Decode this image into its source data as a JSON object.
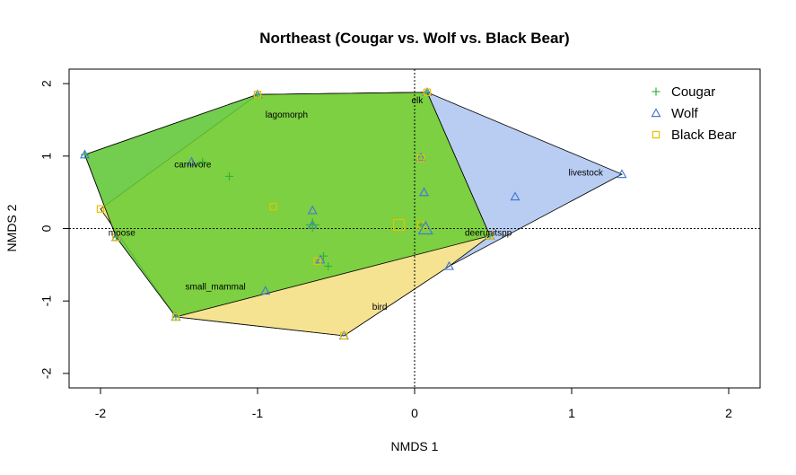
{
  "chart_data": {
    "type": "scatter",
    "title": "Northeast (Cougar vs. Wolf vs. Black Bear)",
    "xlabel": "NMDS 1",
    "ylabel": "NMDS 2",
    "xlim": [
      -2.2,
      2.2
    ],
    "ylim": [
      -2.2,
      2.2
    ],
    "xticks": [
      "-2",
      "-1",
      "0",
      "1",
      "2"
    ],
    "yticks": [
      "-2",
      "-1",
      "0",
      "1",
      "2"
    ],
    "xtick_values": [
      -2,
      -1,
      0,
      1,
      2
    ],
    "ytick_values": [
      -2,
      -1,
      0,
      1,
      2
    ],
    "legend_position": "top-right",
    "series": [
      {
        "name": "Cougar",
        "marker": "plus",
        "color": "#33b533",
        "hull_fill": "#66cc33",
        "hull": [
          [
            -2.1,
            1.02
          ],
          [
            -1.0,
            1.85
          ],
          [
            0.08,
            1.88
          ],
          [
            0.48,
            -0.1
          ],
          [
            -1.52,
            -1.22
          ],
          [
            -1.9,
            -0.12
          ]
        ],
        "points": [
          [
            -1.18,
            0.72
          ],
          [
            -1.35,
            0.92
          ],
          [
            -0.58,
            -0.38
          ],
          [
            -0.55,
            -0.52
          ],
          [
            0.04,
            0.05
          ],
          [
            -0.65,
            0.05
          ],
          [
            0.08,
            1.88
          ],
          [
            -1.0,
            1.85
          ],
          [
            -2.1,
            1.02
          ],
          [
            -1.9,
            -0.12
          ],
          [
            -1.52,
            -1.22
          ],
          [
            0.48,
            -0.1
          ]
        ]
      },
      {
        "name": "Wolf",
        "marker": "triangle",
        "color": "#4a78d4",
        "hull_fill": "#adc4f0",
        "hull": [
          [
            -2.1,
            1.02
          ],
          [
            -1.0,
            1.85
          ],
          [
            0.08,
            1.88
          ],
          [
            1.32,
            0.75
          ],
          [
            0.22,
            -0.52
          ],
          [
            -0.45,
            -1.48
          ],
          [
            -1.52,
            -1.22
          ],
          [
            -1.9,
            -0.12
          ]
        ],
        "points": [
          [
            -1.42,
            0.92
          ],
          [
            -0.65,
            0.25
          ],
          [
            -0.65,
            0.05
          ],
          [
            0.06,
            0.5
          ],
          [
            0.04,
            0.98
          ],
          [
            0.64,
            0.44
          ],
          [
            -0.95,
            -0.86
          ],
          [
            -0.6,
            -0.43
          ],
          [
            0.22,
            -0.52
          ],
          [
            1.32,
            0.75
          ],
          [
            -0.45,
            -1.48
          ],
          [
            0.48,
            -0.1
          ],
          [
            0.08,
            1.88
          ],
          [
            -1.0,
            1.85
          ],
          [
            -2.1,
            1.02
          ],
          [
            -1.9,
            -0.12
          ],
          [
            -1.52,
            -1.22
          ]
        ]
      },
      {
        "name": "Black Bear",
        "marker": "square",
        "color": "#e8c000",
        "hull_fill": "#ffe680",
        "hull": [
          [
            -1.0,
            1.85
          ],
          [
            0.08,
            1.88
          ],
          [
            0.48,
            -0.1
          ],
          [
            0.22,
            -0.52
          ],
          [
            -0.45,
            -1.48
          ],
          [
            -1.52,
            -1.22
          ],
          [
            -2.0,
            0.27
          ]
        ],
        "points": [
          [
            -2.0,
            0.27
          ],
          [
            -0.9,
            0.3
          ],
          [
            -0.62,
            -0.45
          ],
          [
            0.04,
            0.97
          ],
          [
            0.04,
            0.05
          ],
          [
            -0.45,
            -1.48
          ],
          [
            -1.52,
            -1.22
          ],
          [
            0.48,
            -0.1
          ],
          [
            0.08,
            1.88
          ],
          [
            -1.0,
            1.85
          ],
          [
            -1.9,
            -0.12
          ]
        ]
      }
    ],
    "species": [
      {
        "label": "lagomorph",
        "x": -0.95,
        "y": 1.53
      },
      {
        "label": "elk",
        "x": -0.02,
        "y": 1.73
      },
      {
        "label": "carnivore",
        "x": -1.53,
        "y": 0.84
      },
      {
        "label": "livestock",
        "x": 0.98,
        "y": 0.73
      },
      {
        "label": "moose",
        "x": -1.95,
        "y": -0.1
      },
      {
        "label": "deerunitspp",
        "x": 0.32,
        "y": -0.1
      },
      {
        "label": "small_mammal",
        "x": -1.46,
        "y": -0.84
      },
      {
        "label": "bird",
        "x": -0.27,
        "y": -1.12
      }
    ],
    "centroids": [
      {
        "name": "Cougar",
        "x": -0.65,
        "y": 0.05
      },
      {
        "name": "Wolf",
        "x": 0.07,
        "y": 0.0
      },
      {
        "name": "Black Bear",
        "x": -0.1,
        "y": 0.05
      }
    ],
    "grid": false,
    "zero_lines": true
  }
}
